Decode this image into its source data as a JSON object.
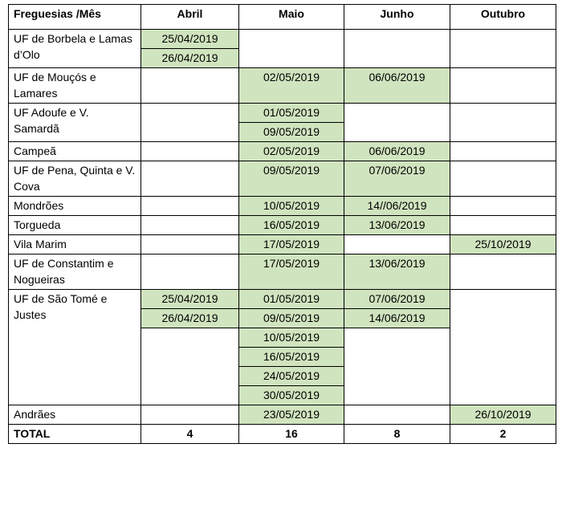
{
  "header": [
    "Freguesias /Mês",
    "Abril",
    "Maio",
    "Junho",
    "Outubro"
  ],
  "rows": [
    {
      "name": "UF de Borbela e Lamas d’Olo",
      "dates": [
        [
          "25/04/2019",
          "26/04/2019"
        ],
        [],
        [],
        []
      ]
    },
    {
      "name": "UF de Mouçós e Lamares",
      "dates": [
        [],
        [
          "02/05/2019"
        ],
        [
          "06/06/2019"
        ],
        []
      ]
    },
    {
      "name": "UF Adoufe e V. Samardã",
      "dates": [
        [],
        [
          "01/05/2019",
          "09/05/2019"
        ],
        [],
        []
      ]
    },
    {
      "name": "Campeã",
      "dates": [
        [],
        [
          "02/05/2019"
        ],
        [
          "06/06/2019"
        ],
        []
      ]
    },
    {
      "name": "UF de Pena, Quinta e V. Cova",
      "dates": [
        [],
        [
          "09/05/2019"
        ],
        [
          "07/06/2019"
        ],
        []
      ]
    },
    {
      "name": "Mondrões",
      "dates": [
        [],
        [
          "10/05/2019"
        ],
        [
          "14//06/2019"
        ],
        []
      ]
    },
    {
      "name": "Torgueda",
      "dates": [
        [],
        [
          "16/05/2019"
        ],
        [
          "13/06/2019"
        ],
        []
      ]
    },
    {
      "name": "Vila Marim",
      "dates": [
        [],
        [
          "17/05/2019"
        ],
        [],
        [
          "25/10/2019"
        ]
      ]
    },
    {
      "name": "UF de Constantim e Nogueiras",
      "dates": [
        [],
        [
          "17/05/2019"
        ],
        [
          "13/06/2019"
        ],
        []
      ]
    },
    {
      "name": "UF de São Tomé e Justes",
      "dates": [
        [
          "25/04/2019",
          "26/04/2019"
        ],
        [
          "01/05/2019",
          "09/05/2019",
          "10/05/2019",
          "16/05/2019",
          "24/05/2019",
          "30/05/2019"
        ],
        [
          "07/06/2019",
          "14/06/2019"
        ],
        []
      ]
    },
    {
      "name": "Andrães",
      "dates": [
        [],
        [
          "23/05/2019"
        ],
        [],
        [
          "26/10/2019"
        ]
      ]
    }
  ],
  "total": {
    "label": "TOTAL",
    "values": [
      4,
      16,
      8,
      2
    ]
  }
}
